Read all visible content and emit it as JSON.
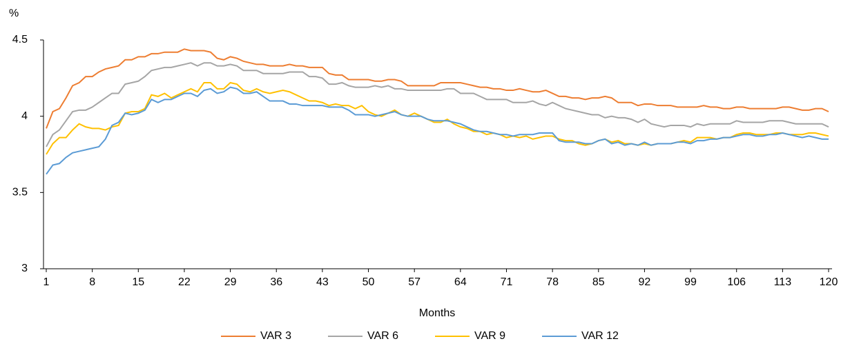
{
  "chart_data": {
    "type": "line",
    "y_label": "%",
    "x_label": "Months",
    "x": [
      1,
      2,
      3,
      4,
      5,
      6,
      7,
      8,
      9,
      10,
      11,
      12,
      13,
      14,
      15,
      16,
      17,
      18,
      19,
      20,
      21,
      22,
      23,
      24,
      25,
      26,
      27,
      28,
      29,
      30,
      31,
      32,
      33,
      34,
      35,
      36,
      37,
      38,
      39,
      40,
      41,
      42,
      43,
      44,
      45,
      46,
      47,
      48,
      49,
      50,
      51,
      52,
      53,
      54,
      55,
      56,
      57,
      58,
      59,
      60,
      61,
      62,
      63,
      64,
      65,
      66,
      67,
      68,
      69,
      70,
      71,
      72,
      73,
      74,
      75,
      76,
      77,
      78,
      79,
      80,
      81,
      82,
      83,
      84,
      85,
      86,
      87,
      88,
      89,
      90,
      91,
      92,
      93,
      94,
      95,
      96,
      97,
      98,
      99,
      100,
      101,
      102,
      103,
      104,
      105,
      106,
      107,
      108,
      109,
      110,
      111,
      112,
      113,
      114,
      115,
      116,
      117,
      118,
      119,
      120
    ],
    "xlim": [
      1,
      120
    ],
    "xticks": [
      1,
      8,
      15,
      22,
      29,
      36,
      43,
      50,
      57,
      64,
      71,
      78,
      85,
      92,
      99,
      106,
      113,
      120
    ],
    "ylim": [
      3,
      4.5
    ],
    "yticks": [
      3,
      3.5,
      4,
      4.5
    ],
    "grid": false,
    "legend": "bottom",
    "series": [
      {
        "name": "VAR 3",
        "color": "#ed7d31",
        "values": [
          3.92,
          4.03,
          4.05,
          4.12,
          4.2,
          4.22,
          4.26,
          4.26,
          4.29,
          4.31,
          4.32,
          4.33,
          4.37,
          4.37,
          4.39,
          4.39,
          4.41,
          4.41,
          4.42,
          4.42,
          4.42,
          4.44,
          4.43,
          4.43,
          4.43,
          4.42,
          4.38,
          4.37,
          4.39,
          4.38,
          4.36,
          4.35,
          4.34,
          4.34,
          4.33,
          4.33,
          4.33,
          4.34,
          4.33,
          4.33,
          4.32,
          4.32,
          4.32,
          4.28,
          4.27,
          4.27,
          4.24,
          4.24,
          4.24,
          4.24,
          4.23,
          4.23,
          4.24,
          4.24,
          4.23,
          4.2,
          4.2,
          4.2,
          4.2,
          4.2,
          4.22,
          4.22,
          4.22,
          4.22,
          4.21,
          4.2,
          4.19,
          4.19,
          4.18,
          4.18,
          4.17,
          4.17,
          4.18,
          4.17,
          4.16,
          4.16,
          4.17,
          4.15,
          4.13,
          4.13,
          4.12,
          4.12,
          4.11,
          4.12,
          4.12,
          4.13,
          4.12,
          4.09,
          4.09,
          4.09,
          4.07,
          4.08,
          4.08,
          4.07,
          4.07,
          4.07,
          4.06,
          4.06,
          4.06,
          4.06,
          4.07,
          4.06,
          4.06,
          4.05,
          4.05,
          4.06,
          4.06,
          4.05,
          4.05,
          4.05,
          4.05,
          4.05,
          4.06,
          4.06,
          4.05,
          4.04,
          4.04,
          4.05,
          4.05,
          4.03
        ]
      },
      {
        "name": "VAR 6",
        "color": "#a5a5a5",
        "values": [
          3.8,
          3.88,
          3.91,
          3.97,
          4.03,
          4.04,
          4.04,
          4.06,
          4.09,
          4.12,
          4.15,
          4.15,
          4.21,
          4.22,
          4.23,
          4.26,
          4.3,
          4.31,
          4.32,
          4.32,
          4.33,
          4.34,
          4.35,
          4.33,
          4.35,
          4.35,
          4.33,
          4.33,
          4.34,
          4.33,
          4.3,
          4.3,
          4.3,
          4.28,
          4.28,
          4.28,
          4.28,
          4.29,
          4.29,
          4.29,
          4.26,
          4.26,
          4.25,
          4.21,
          4.21,
          4.22,
          4.2,
          4.19,
          4.19,
          4.19,
          4.2,
          4.19,
          4.2,
          4.18,
          4.18,
          4.17,
          4.17,
          4.17,
          4.17,
          4.17,
          4.17,
          4.18,
          4.18,
          4.15,
          4.15,
          4.15,
          4.13,
          4.11,
          4.11,
          4.11,
          4.11,
          4.09,
          4.09,
          4.09,
          4.1,
          4.08,
          4.07,
          4.09,
          4.07,
          4.05,
          4.04,
          4.03,
          4.02,
          4.01,
          4.01,
          3.99,
          4.0,
          3.99,
          3.99,
          3.98,
          3.96,
          3.98,
          3.95,
          3.94,
          3.93,
          3.94,
          3.94,
          3.94,
          3.93,
          3.95,
          3.94,
          3.95,
          3.95,
          3.95,
          3.95,
          3.97,
          3.96,
          3.96,
          3.96,
          3.96,
          3.97,
          3.97,
          3.97,
          3.96,
          3.95,
          3.95,
          3.95,
          3.95,
          3.95,
          3.93
        ]
      },
      {
        "name": "VAR 9",
        "color": "#ffc000",
        "values": [
          3.75,
          3.82,
          3.86,
          3.86,
          3.91,
          3.95,
          3.93,
          3.92,
          3.92,
          3.91,
          3.93,
          3.94,
          4.02,
          4.03,
          4.03,
          4.05,
          4.14,
          4.13,
          4.15,
          4.12,
          4.14,
          4.16,
          4.18,
          4.16,
          4.22,
          4.22,
          4.18,
          4.18,
          4.22,
          4.21,
          4.17,
          4.16,
          4.18,
          4.16,
          4.15,
          4.16,
          4.17,
          4.16,
          4.14,
          4.12,
          4.1,
          4.1,
          4.09,
          4.07,
          4.08,
          4.07,
          4.07,
          4.05,
          4.07,
          4.03,
          4.01,
          4.0,
          4.02,
          4.04,
          4.01,
          4.0,
          4.02,
          4.0,
          3.98,
          3.96,
          3.96,
          3.98,
          3.95,
          3.93,
          3.92,
          3.9,
          3.9,
          3.88,
          3.89,
          3.88,
          3.86,
          3.87,
          3.86,
          3.87,
          3.85,
          3.86,
          3.87,
          3.87,
          3.85,
          3.84,
          3.84,
          3.82,
          3.81,
          3.82,
          3.84,
          3.85,
          3.83,
          3.84,
          3.82,
          3.82,
          3.81,
          3.82,
          3.81,
          3.82,
          3.82,
          3.82,
          3.83,
          3.84,
          3.83,
          3.86,
          3.86,
          3.86,
          3.85,
          3.86,
          3.86,
          3.88,
          3.89,
          3.89,
          3.88,
          3.88,
          3.88,
          3.89,
          3.89,
          3.88,
          3.88,
          3.88,
          3.89,
          3.89,
          3.88,
          3.87
        ]
      },
      {
        "name": "VAR 12",
        "color": "#5b9bd5",
        "values": [
          3.62,
          3.68,
          3.69,
          3.73,
          3.76,
          3.77,
          3.78,
          3.79,
          3.8,
          3.85,
          3.94,
          3.96,
          4.02,
          4.01,
          4.02,
          4.04,
          4.11,
          4.09,
          4.11,
          4.11,
          4.13,
          4.15,
          4.15,
          4.13,
          4.17,
          4.18,
          4.15,
          4.16,
          4.19,
          4.18,
          4.15,
          4.15,
          4.16,
          4.13,
          4.1,
          4.1,
          4.1,
          4.08,
          4.08,
          4.07,
          4.07,
          4.07,
          4.07,
          4.06,
          4.06,
          4.06,
          4.04,
          4.01,
          4.01,
          4.01,
          4.0,
          4.01,
          4.02,
          4.03,
          4.01,
          4.0,
          4.0,
          4.0,
          3.98,
          3.97,
          3.97,
          3.97,
          3.96,
          3.95,
          3.93,
          3.91,
          3.9,
          3.9,
          3.89,
          3.88,
          3.88,
          3.87,
          3.88,
          3.88,
          3.88,
          3.89,
          3.89,
          3.89,
          3.84,
          3.83,
          3.83,
          3.83,
          3.82,
          3.82,
          3.84,
          3.85,
          3.82,
          3.83,
          3.81,
          3.82,
          3.81,
          3.83,
          3.81,
          3.82,
          3.82,
          3.82,
          3.83,
          3.83,
          3.82,
          3.84,
          3.84,
          3.85,
          3.85,
          3.86,
          3.86,
          3.87,
          3.88,
          3.88,
          3.87,
          3.87,
          3.88,
          3.88,
          3.89,
          3.88,
          3.87,
          3.86,
          3.87,
          3.86,
          3.85,
          3.85
        ]
      }
    ]
  }
}
